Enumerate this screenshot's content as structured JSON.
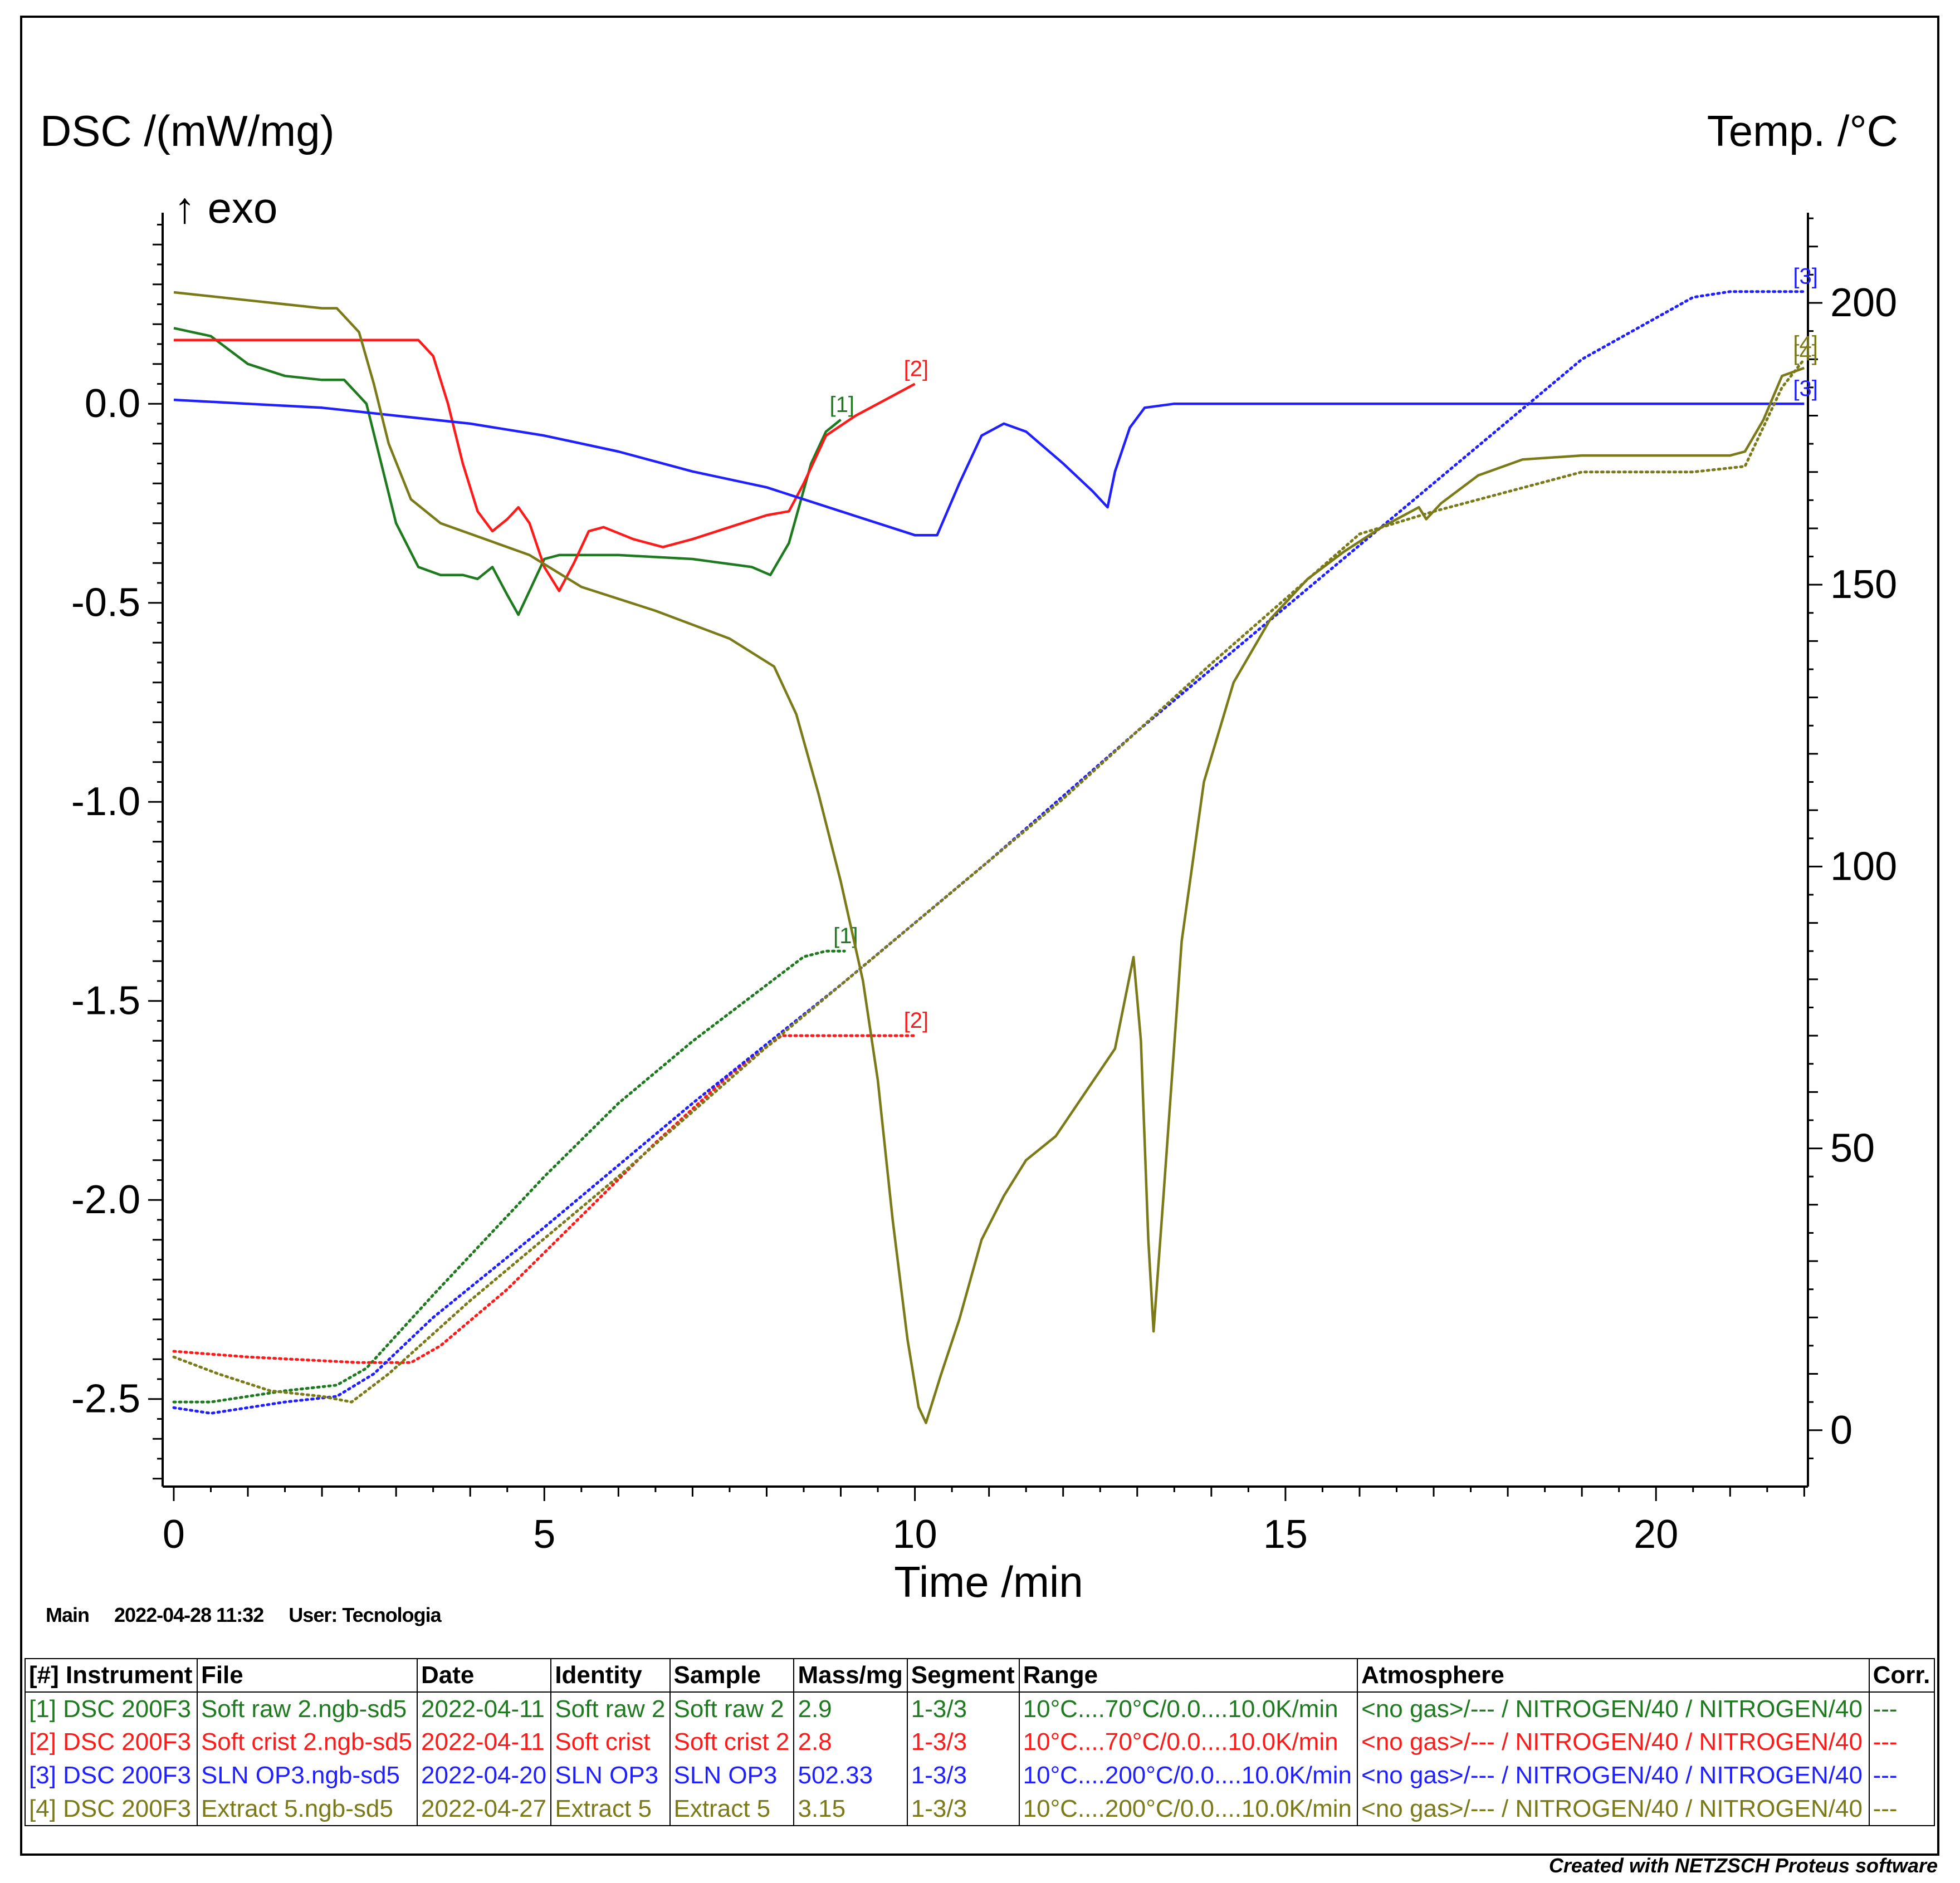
{
  "chart_data": {
    "type": "line",
    "xlabel": "Time /min",
    "ylabel_left": "DSC /(mW/mg)",
    "ylabel_right": "Temp. /°C",
    "exo_label": "↑ exo",
    "xlim": [
      -0.15,
      22.05
    ],
    "ylim_left": [
      -2.72,
      0.48
    ],
    "ylim_right": [
      -10,
      216
    ],
    "x_ticks": [
      0,
      5,
      10,
      15,
      20
    ],
    "x_tick_labels": [
      "0",
      "5",
      "10",
      "15",
      "20"
    ],
    "y_left_ticks": [
      0.0,
      -0.5,
      -1.0,
      -1.5,
      -2.0,
      -2.5
    ],
    "y_left_tick_labels": [
      "0.0",
      "-0.5",
      "-1.0",
      "-1.5",
      "-2.0",
      "-2.5"
    ],
    "y_right_ticks": [
      200,
      150,
      100,
      50,
      0
    ],
    "y_right_tick_labels": [
      "200",
      "150",
      "100",
      "50",
      "0"
    ],
    "series": [
      {
        "name": "[1]",
        "color": "#1e7a1e",
        "dsc": [
          [
            0,
            0.19
          ],
          [
            0.5,
            0.17
          ],
          [
            1,
            0.1
          ],
          [
            1.5,
            0.07
          ],
          [
            2,
            0.06
          ],
          [
            2.3,
            0.06
          ],
          [
            2.6,
            0.0
          ],
          [
            2.8,
            -0.15
          ],
          [
            3.0,
            -0.3
          ],
          [
            3.3,
            -0.41
          ],
          [
            3.6,
            -0.43
          ],
          [
            3.9,
            -0.43
          ],
          [
            4.1,
            -0.44
          ],
          [
            4.3,
            -0.41
          ],
          [
            4.5,
            -0.48
          ],
          [
            4.65,
            -0.53
          ],
          [
            4.8,
            -0.47
          ],
          [
            5.0,
            -0.39
          ],
          [
            5.2,
            -0.38
          ],
          [
            6,
            -0.38
          ],
          [
            7,
            -0.39
          ],
          [
            7.8,
            -0.41
          ],
          [
            8.05,
            -0.43
          ],
          [
            8.3,
            -0.35
          ],
          [
            8.6,
            -0.15
          ],
          [
            8.8,
            -0.07
          ],
          [
            9.0,
            -0.04
          ]
        ],
        "temp": [
          [
            0,
            5
          ],
          [
            0.5,
            5
          ],
          [
            1.5,
            7
          ],
          [
            2.2,
            8
          ],
          [
            2.6,
            11
          ],
          [
            3.5,
            24
          ],
          [
            5,
            45
          ],
          [
            6,
            58
          ],
          [
            7,
            69
          ],
          [
            8,
            79
          ],
          [
            8.5,
            84
          ],
          [
            8.8,
            85
          ],
          [
            9.05,
            85
          ]
        ],
        "dsc_end_label": "[1]",
        "temp_end_label": "[1]"
      },
      {
        "name": "[2]",
        "color": "#ff1a1a",
        "dsc": [
          [
            0,
            0.16
          ],
          [
            1,
            0.16
          ],
          [
            2,
            0.16
          ],
          [
            3,
            0.16
          ],
          [
            3.3,
            0.16
          ],
          [
            3.5,
            0.12
          ],
          [
            3.7,
            0.0
          ],
          [
            3.9,
            -0.15
          ],
          [
            4.1,
            -0.27
          ],
          [
            4.3,
            -0.32
          ],
          [
            4.5,
            -0.29
          ],
          [
            4.65,
            -0.26
          ],
          [
            4.8,
            -0.3
          ],
          [
            5.0,
            -0.41
          ],
          [
            5.2,
            -0.47
          ],
          [
            5.4,
            -0.4
          ],
          [
            5.6,
            -0.32
          ],
          [
            5.8,
            -0.31
          ],
          [
            6.2,
            -0.34
          ],
          [
            6.6,
            -0.36
          ],
          [
            7,
            -0.34
          ],
          [
            7.5,
            -0.31
          ],
          [
            8,
            -0.28
          ],
          [
            8.3,
            -0.27
          ],
          [
            8.5,
            -0.2
          ],
          [
            8.8,
            -0.08
          ],
          [
            9.2,
            -0.03
          ],
          [
            9.6,
            0.01
          ],
          [
            10,
            0.05
          ]
        ],
        "temp": [
          [
            0,
            14
          ],
          [
            1,
            13
          ],
          [
            2.5,
            12
          ],
          [
            3.2,
            12
          ],
          [
            3.6,
            15
          ],
          [
            4.5,
            25
          ],
          [
            5.5,
            38
          ],
          [
            6.5,
            51
          ],
          [
            7.5,
            63
          ],
          [
            8.2,
            70
          ],
          [
            8.6,
            70
          ],
          [
            9.3,
            70
          ],
          [
            10,
            70
          ]
        ],
        "dsc_end_label": "[2]",
        "temp_end_label": "[2]"
      },
      {
        "name": "[3]",
        "color": "#1f1fff",
        "dsc": [
          [
            0,
            0.01
          ],
          [
            1,
            0.0
          ],
          [
            2,
            -0.01
          ],
          [
            3,
            -0.03
          ],
          [
            4,
            -0.05
          ],
          [
            5,
            -0.08
          ],
          [
            6,
            -0.12
          ],
          [
            7,
            -0.17
          ],
          [
            8,
            -0.21
          ],
          [
            9,
            -0.27
          ],
          [
            10,
            -0.33
          ],
          [
            10.3,
            -0.33
          ],
          [
            10.6,
            -0.2
          ],
          [
            10.9,
            -0.08
          ],
          [
            11.2,
            -0.05
          ],
          [
            11.5,
            -0.07
          ],
          [
            12,
            -0.15
          ],
          [
            12.4,
            -0.22
          ],
          [
            12.6,
            -0.26
          ],
          [
            12.7,
            -0.17
          ],
          [
            12.9,
            -0.06
          ],
          [
            13.1,
            -0.01
          ],
          [
            13.5,
            0.0
          ],
          [
            15,
            0.0
          ],
          [
            18,
            0.0
          ],
          [
            20,
            0.0
          ],
          [
            21.5,
            0.0
          ],
          [
            22,
            0.0
          ]
        ],
        "temp": [
          [
            0,
            4
          ],
          [
            0.5,
            3
          ],
          [
            1.5,
            5
          ],
          [
            2.2,
            6
          ],
          [
            2.7,
            10
          ],
          [
            3.5,
            20
          ],
          [
            5,
            36
          ],
          [
            7,
            58
          ],
          [
            9,
            79
          ],
          [
            11,
            101
          ],
          [
            13,
            124
          ],
          [
            15,
            146
          ],
          [
            17,
            168
          ],
          [
            19,
            190
          ],
          [
            20.5,
            201
          ],
          [
            21,
            202
          ],
          [
            22,
            202
          ]
        ],
        "dsc_end_label": "[3]",
        "temp_end_label": "[3]"
      },
      {
        "name": "[4]",
        "color": "#7a7a18",
        "dsc": [
          [
            0,
            0.28
          ],
          [
            1,
            0.26
          ],
          [
            2,
            0.24
          ],
          [
            2.2,
            0.24
          ],
          [
            2.5,
            0.18
          ],
          [
            2.7,
            0.05
          ],
          [
            2.9,
            -0.1
          ],
          [
            3.2,
            -0.24
          ],
          [
            3.6,
            -0.3
          ],
          [
            4.2,
            -0.34
          ],
          [
            4.8,
            -0.38
          ],
          [
            5.5,
            -0.46
          ],
          [
            6.5,
            -0.52
          ],
          [
            7.5,
            -0.59
          ],
          [
            8.1,
            -0.66
          ],
          [
            8.4,
            -0.78
          ],
          [
            8.7,
            -0.98
          ],
          [
            9.0,
            -1.2
          ],
          [
            9.3,
            -1.45
          ],
          [
            9.5,
            -1.7
          ],
          [
            9.7,
            -2.05
          ],
          [
            9.9,
            -2.35
          ],
          [
            10.05,
            -2.52
          ],
          [
            10.15,
            -2.56
          ],
          [
            10.35,
            -2.44
          ],
          [
            10.6,
            -2.3
          ],
          [
            10.9,
            -2.1
          ],
          [
            11.2,
            -1.99
          ],
          [
            11.5,
            -1.9
          ],
          [
            11.9,
            -1.84
          ],
          [
            12.3,
            -1.73
          ],
          [
            12.7,
            -1.62
          ],
          [
            12.95,
            -1.39
          ],
          [
            13.05,
            -1.6
          ],
          [
            13.15,
            -2.1
          ],
          [
            13.22,
            -2.33
          ],
          [
            13.35,
            -2.0
          ],
          [
            13.6,
            -1.35
          ],
          [
            13.9,
            -0.95
          ],
          [
            14.3,
            -0.7
          ],
          [
            14.8,
            -0.54
          ],
          [
            15.3,
            -0.44
          ],
          [
            15.8,
            -0.37
          ],
          [
            16.3,
            -0.31
          ],
          [
            16.8,
            -0.26
          ],
          [
            16.9,
            -0.29
          ],
          [
            17.1,
            -0.25
          ],
          [
            17.6,
            -0.18
          ],
          [
            18.2,
            -0.14
          ],
          [
            19,
            -0.13
          ],
          [
            20,
            -0.13
          ],
          [
            21,
            -0.13
          ],
          [
            21.2,
            -0.12
          ],
          [
            21.45,
            -0.04
          ],
          [
            21.7,
            0.07
          ],
          [
            22,
            0.09
          ]
        ],
        "temp": [
          [
            0,
            13
          ],
          [
            0.6,
            10
          ],
          [
            1.3,
            7
          ],
          [
            2,
            6
          ],
          [
            2.4,
            5
          ],
          [
            2.9,
            10
          ],
          [
            4,
            23
          ],
          [
            6,
            45
          ],
          [
            8,
            68
          ],
          [
            10,
            90
          ],
          [
            12,
            112
          ],
          [
            14,
            136
          ],
          [
            16,
            159
          ],
          [
            17,
            163
          ],
          [
            19,
            170
          ],
          [
            20,
            170
          ],
          [
            20.5,
            170
          ],
          [
            21.2,
            171
          ],
          [
            21.7,
            185
          ],
          [
            22,
            190
          ]
        ],
        "dsc_end_label": "[4]",
        "temp_end_label": "[4]"
      }
    ]
  },
  "footer": {
    "tab": "Main",
    "datetime": "2022-04-28 11:32",
    "user": "User: Tecnologia",
    "credit": "Created with NETZSCH Proteus software"
  },
  "legend_table": {
    "headers": [
      "[#] Instrument",
      "File",
      "Date",
      "Identity",
      "Sample",
      "Mass/mg",
      "Segment",
      "Range",
      "Atmosphere",
      "Corr."
    ],
    "rows": [
      {
        "color": "#1e7a1e",
        "cells": [
          "[1] DSC 200F3",
          "Soft raw 2.ngb-sd5",
          "2022-04-11",
          "Soft raw 2",
          "Soft raw 2",
          "2.9",
          "1-3/3",
          "10°C....70°C/0.0....10.0K/min",
          "<no gas>/--- / NITROGEN/40 / NITROGEN/40",
          "---"
        ]
      },
      {
        "color": "#ff1a1a",
        "cells": [
          "[2] DSC 200F3",
          "Soft crist 2.ngb-sd5",
          "2022-04-11",
          "Soft crist",
          "Soft crist 2",
          "2.8",
          "1-3/3",
          "10°C....70°C/0.0....10.0K/min",
          "<no gas>/--- / NITROGEN/40 / NITROGEN/40",
          "---"
        ]
      },
      {
        "color": "#1f1fff",
        "cells": [
          "[3] DSC 200F3",
          "SLN OP3.ngb-sd5",
          "2022-04-20",
          "SLN OP3",
          "SLN OP3",
          "502.33",
          "1-3/3",
          "10°C....200°C/0.0....10.0K/min",
          "<no gas>/--- / NITROGEN/40 / NITROGEN/40",
          "---"
        ]
      },
      {
        "color": "#7a7a18",
        "cells": [
          "[4] DSC 200F3",
          "Extract 5.ngb-sd5",
          "2022-04-27",
          "Extract 5",
          "Extract 5",
          "3.15",
          "1-3/3",
          "10°C....200°C/0.0....10.0K/min",
          "<no gas>/--- / NITROGEN/40 / NITROGEN/40",
          "---"
        ]
      }
    ]
  }
}
